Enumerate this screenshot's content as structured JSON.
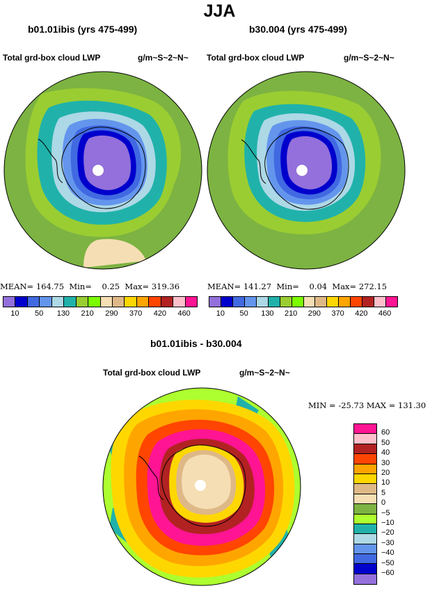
{
  "title": "JJA",
  "panels": [
    {
      "case": "b01.01ibis (yrs 475-499)",
      "variable": "Total grd-box cloud LWP",
      "units": "g/m~S~2~N~",
      "stats": "MEAN= 164.75  Min=    0.25  Max= 319.36"
    },
    {
      "case": "b30.004 (yrs 475-499)",
      "variable": "Total grd-box cloud LWP",
      "units": "g/m~S~2~N~",
      "stats": "MEAN= 141.27  Min=    0.04  Max= 272.15"
    }
  ],
  "colorbar": {
    "colors": [
      "#9370db",
      "#0000cd",
      "#4169e1",
      "#6495ed",
      "#add8e6",
      "#20b2aa",
      "#9acd32",
      "#7cfc00",
      "#f5deb3",
      "#deb887",
      "#ffd700",
      "#ffa500",
      "#ff4500",
      "#b22222",
      "#ffc0cb",
      "#ff1493"
    ],
    "labels": [
      "10",
      "50",
      "130",
      "210",
      "290",
      "370",
      "420",
      "460"
    ]
  },
  "diff": {
    "case": "b01.01ibis - b30.004",
    "variable": "Total grd-box cloud LWP",
    "units": "g/m~S~2~N~",
    "range_text": "MIN = -25.73 MAX = 131.30",
    "levels": [
      "60",
      "50",
      "40",
      "30",
      "20",
      "10",
      "5",
      "0",
      "−5",
      "−10",
      "−20",
      "−30",
      "−40",
      "−50",
      "−60"
    ],
    "colors": [
      "#ff1493",
      "#ffc0cb",
      "#b22222",
      "#ff4500",
      "#ffa500",
      "#ffd700",
      "#deb887",
      "#f5deb3",
      "#7cb342",
      "#adff2f",
      "#20b2aa",
      "#add8e6",
      "#6495ed",
      "#4169e1",
      "#0000cd",
      "#9370db"
    ]
  }
}
